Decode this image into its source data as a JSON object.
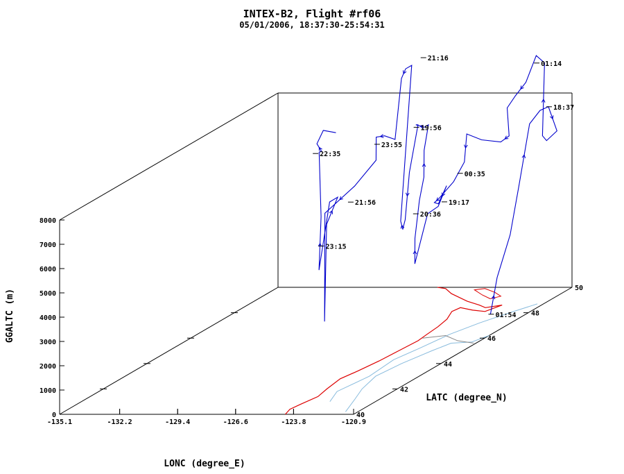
{
  "chart_data": {
    "type": "line",
    "title": "INTEX-B2, Flight #rf06",
    "subtitle": "05/01/2006, 18:37:30-25:54:31",
    "xlabel": "LONC (degree_E)",
    "ylabel": "LATC (degree_N)",
    "zlabel": "GGALTC (m)",
    "x_ticks": [
      "-135.1",
      "-132.2",
      "-129.4",
      "-126.6",
      "-123.8",
      "-120.9"
    ],
    "y_ticks": [
      "40",
      "42",
      "44",
      "46",
      "48",
      "50"
    ],
    "z_ticks": [
      "0",
      "1000",
      "2000",
      "3000",
      "4000",
      "5000",
      "6000",
      "7000",
      "8000"
    ],
    "xlim": [
      -135.1,
      -120.9
    ],
    "ylim": [
      40,
      50
    ],
    "zlim": [
      0,
      8000
    ],
    "colors": {
      "track": "#0000cc",
      "coast": "#dd0000",
      "rivers": "#88bbdd",
      "border": "#888888"
    },
    "annotations": [
      {
        "label": "18:37",
        "lon": -121.4,
        "lat": 49.3,
        "alt": 7800
      },
      {
        "label": "19:17",
        "lon": -123.4,
        "lat": 46.4,
        "alt": 5400
      },
      {
        "label": "19:56",
        "lon": -125.7,
        "lat": 47.3,
        "alt": 8000
      },
      {
        "label": "20:36",
        "lon": -125.2,
        "lat": 46.8,
        "alt": 4700
      },
      {
        "label": "21:16",
        "lon": -126.1,
        "lat": 48.0,
        "alt": 10500
      },
      {
        "label": "21:56",
        "lon": -127.5,
        "lat": 46.0,
        "alt": 5600
      },
      {
        "label": "22:35",
        "lon": -129.2,
        "lat": 46.0,
        "alt": 7600
      },
      {
        "label": "23:15",
        "lon": -128.5,
        "lat": 45.6,
        "alt": 4000
      },
      {
        "label": "23:55",
        "lon": -127.6,
        "lat": 47.3,
        "alt": 7300
      },
      {
        "label": "00:35",
        "lon": -123.8,
        "lat": 47.5,
        "alt": 6000
      },
      {
        "label": "01:14",
        "lon": -122.0,
        "lat": 49.3,
        "alt": 9600
      },
      {
        "label": "01:54",
        "lon": -122.3,
        "lat": 47.5,
        "alt": 200
      }
    ],
    "track": [
      [
        -122.2,
        47.5,
        200
      ],
      [
        -122.3,
        47.9,
        1500
      ],
      [
        -122.2,
        48.4,
        3000
      ],
      [
        -122.2,
        48.8,
        4800
      ],
      [
        -122.0,
        49.1,
        7200
      ],
      [
        -121.6,
        49.2,
        7700
      ],
      [
        -121.3,
        49.3,
        7800
      ],
      [
        -121.1,
        49.5,
        6700
      ],
      [
        -121.6,
        49.5,
        6300
      ],
      [
        -121.8,
        49.5,
        6500
      ],
      [
        -121.7,
        49.5,
        9500
      ],
      [
        -122.1,
        49.5,
        9800
      ],
      [
        -122.6,
        49.5,
        8700
      ],
      [
        -123.0,
        49.4,
        8200
      ],
      [
        -123.4,
        49.4,
        7700
      ],
      [
        -123.2,
        49.3,
        6600
      ],
      [
        -123.5,
        49.2,
        6400
      ],
      [
        -124.0,
        48.8,
        6700
      ],
      [
        -124.4,
        48.5,
        7100
      ],
      [
        -124.2,
        48.2,
        6100
      ],
      [
        -124.3,
        47.8,
        5500
      ],
      [
        -124.6,
        47.4,
        5000
      ],
      [
        -124.7,
        47.3,
        4900
      ],
      [
        -124.4,
        47.2,
        4900
      ],
      [
        -123.9,
        47.1,
        5700
      ],
      [
        -124.2,
        47.0,
        4900
      ],
      [
        -124.5,
        46.8,
        4700
      ],
      [
        -124.8,
        46.5,
        2800
      ],
      [
        -124.9,
        46.6,
        3800
      ],
      [
        -125.0,
        46.9,
        5200
      ],
      [
        -125.1,
        47.2,
        6000
      ],
      [
        -125.3,
        47.4,
        7000
      ],
      [
        -125.2,
        47.5,
        8000
      ],
      [
        -125.4,
        47.5,
        7900
      ],
      [
        -125.7,
        47.4,
        8050
      ],
      [
        -125.7,
        47.5,
        8000
      ],
      [
        -125.8,
        47.2,
        6200
      ],
      [
        -125.9,
        47.1,
        4300
      ],
      [
        -125.9,
        47.0,
        4000
      ],
      [
        -125.8,
        46.9,
        4000
      ],
      [
        -125.8,
        46.8,
        4400
      ],
      [
        -125.9,
        47.4,
        10500
      ],
      [
        -126.3,
        47.5,
        10300
      ],
      [
        -126.5,
        47.5,
        9900
      ],
      [
        -126.6,
        47.3,
        7500
      ],
      [
        -127.0,
        47.2,
        7700
      ],
      [
        -127.3,
        47.1,
        7700
      ],
      [
        -127.2,
        47.0,
        6800
      ],
      [
        -127.5,
        46.3,
        6100
      ],
      [
        -128.3,
        45.7,
        5300
      ],
      [
        -128.0,
        45.4,
        1000
      ],
      [
        -127.9,
        45.4,
        5000
      ],
      [
        -128.0,
        46.0,
        5800
      ],
      [
        -128.6,
        46.2,
        5500
      ],
      [
        -128.9,
        46.0,
        2800
      ],
      [
        -128.8,
        46.0,
        5000
      ],
      [
        -129.0,
        46.1,
        7600
      ],
      [
        -129.0,
        46.2,
        7600
      ],
      [
        -129.0,
        46.0,
        8000
      ],
      [
        -128.8,
        46.1,
        8500
      ],
      [
        -128.4,
        46.3,
        8300
      ]
    ]
  }
}
